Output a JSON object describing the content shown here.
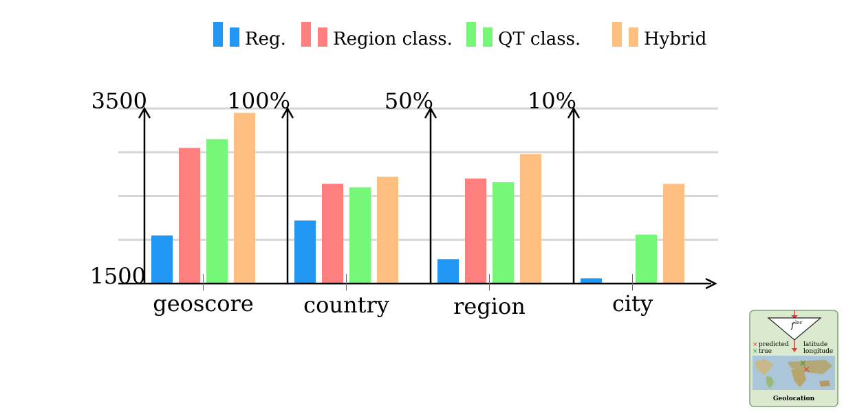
{
  "chart_data": {
    "type": "bar",
    "legend_placement": "top",
    "grid": true,
    "series": [
      {
        "name": "Reg.",
        "color": "#2196f3"
      },
      {
        "name": "Region class.",
        "color": "#ff7f7f"
      },
      {
        "name": "QT class.",
        "color": "#77f777"
      },
      {
        "name": "Hybrid",
        "color": "#ffbf80"
      }
    ],
    "panels": [
      {
        "category": "geoscore",
        "ylim": [
          1500,
          3500
        ],
        "top_tick": "3500",
        "bottom_tick": "1500",
        "values": [
          2050,
          3050,
          3150,
          3450
        ]
      },
      {
        "category": "country",
        "ylim": [
          0,
          100
        ],
        "top_tick": "100%",
        "values": [
          36,
          57,
          55,
          61
        ]
      },
      {
        "category": "region",
        "ylim": [
          0,
          50
        ],
        "top_tick": "50%",
        "values": [
          7,
          30,
          29,
          37
        ]
      },
      {
        "category": "city",
        "ylim": [
          0,
          10
        ],
        "top_tick": "10%",
        "values": [
          0.3,
          0,
          2.8,
          5.7
        ]
      }
    ]
  },
  "inset": {
    "symbol": "f",
    "superscript": "loc",
    "legend_predicted": "predicted",
    "legend_true": "true",
    "output_latitude": "latitude",
    "output_longitude": "longitude",
    "caption": "Geolocation",
    "predicted_color": "#e53935",
    "true_color": "#2e9d3a"
  }
}
